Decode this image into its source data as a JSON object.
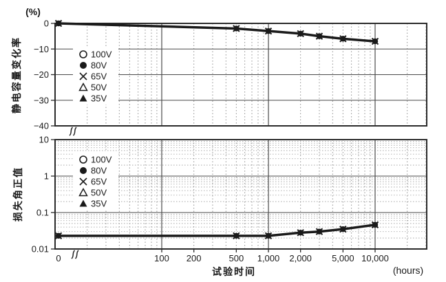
{
  "figure": {
    "background": "#ffffff",
    "x_axis": {
      "title": "试验时间",
      "unit": "(hours)",
      "scale": "log (zero point followed by axis break)",
      "tick_labels": [
        "0",
        "100",
        "200",
        "500",
        "1,000",
        "2,000",
        "5,000",
        "10,000"
      ],
      "tick_values": [
        0,
        100,
        200,
        500,
        1000,
        2000,
        5000,
        10000
      ],
      "solid_gridlines_at": [
        100,
        1000,
        10000
      ],
      "log_region_range": [
        20,
        30000
      ],
      "break_after_zero": true
    },
    "legend": {
      "note": "same legend repeated inside both panels, upper-left",
      "items": [
        {
          "marker": "open-circle",
          "label": "100V"
        },
        {
          "marker": "filled-circle",
          "label": "80V"
        },
        {
          "marker": "x-cross",
          "label": "65V"
        },
        {
          "marker": "open-triangle",
          "label": "50V"
        },
        {
          "marker": "filled-triangle",
          "label": "35V"
        }
      ]
    },
    "colors": {
      "curve": "#1a1a1a",
      "frame": "#2a2a2a",
      "grid_solid": "#4a4a4a",
      "grid_dotted": "#8f8f8f",
      "text": "#1a1a1a",
      "background": "#ffffff"
    }
  },
  "chart_data": [
    {
      "type": "line",
      "panel": "top",
      "ylabel": "静电容量变化率",
      "y_unit": "(%)",
      "y_scale": "linear",
      "ylim": [
        -40,
        0
      ],
      "y_tick_labels": [
        "0",
        "−10",
        "−20",
        "−30",
        "−40"
      ],
      "y_tick_values": [
        0,
        -10,
        -20,
        -30,
        -40
      ],
      "x": [
        0,
        500,
        1000,
        2000,
        3000,
        5000,
        10000
      ],
      "series": [
        {
          "name": "100V",
          "values": [
            0,
            -2,
            -3,
            -4,
            -5,
            -6,
            -7
          ]
        },
        {
          "name": "80V",
          "values": [
            0,
            -2,
            -3,
            -4,
            -5,
            -6,
            -7
          ]
        },
        {
          "name": "65V",
          "values": [
            0,
            -2,
            -3,
            -4,
            -5,
            -6,
            -7
          ]
        },
        {
          "name": "50V",
          "values": [
            0,
            -2,
            -3,
            -4,
            -5,
            -6,
            -7
          ]
        },
        {
          "name": "35V",
          "values": [
            0,
            -2,
            -3,
            -4,
            -5,
            -6,
            -7
          ]
        }
      ],
      "series_overlap": true
    },
    {
      "type": "line",
      "panel": "bottom",
      "ylabel": "损失角正值",
      "y_unit": "",
      "y_scale": "log",
      "ylim": [
        0.01,
        10
      ],
      "y_tick_labels": [
        "10",
        "1",
        "0.1",
        "0.01"
      ],
      "y_tick_values": [
        10,
        1,
        0.1,
        0.01
      ],
      "x": [
        0,
        500,
        1000,
        2000,
        3000,
        5000,
        10000
      ],
      "series": [
        {
          "name": "100V",
          "values": [
            0.023,
            0.023,
            0.023,
            0.028,
            0.03,
            0.035,
            0.046
          ]
        },
        {
          "name": "80V",
          "values": [
            0.023,
            0.023,
            0.023,
            0.028,
            0.03,
            0.035,
            0.046
          ]
        },
        {
          "name": "65V",
          "values": [
            0.023,
            0.023,
            0.023,
            0.028,
            0.03,
            0.035,
            0.046
          ]
        },
        {
          "name": "50V",
          "values": [
            0.023,
            0.023,
            0.023,
            0.028,
            0.03,
            0.035,
            0.046
          ]
        },
        {
          "name": "35V",
          "values": [
            0.023,
            0.023,
            0.023,
            0.028,
            0.03,
            0.035,
            0.046
          ]
        }
      ],
      "series_overlap": true
    }
  ]
}
